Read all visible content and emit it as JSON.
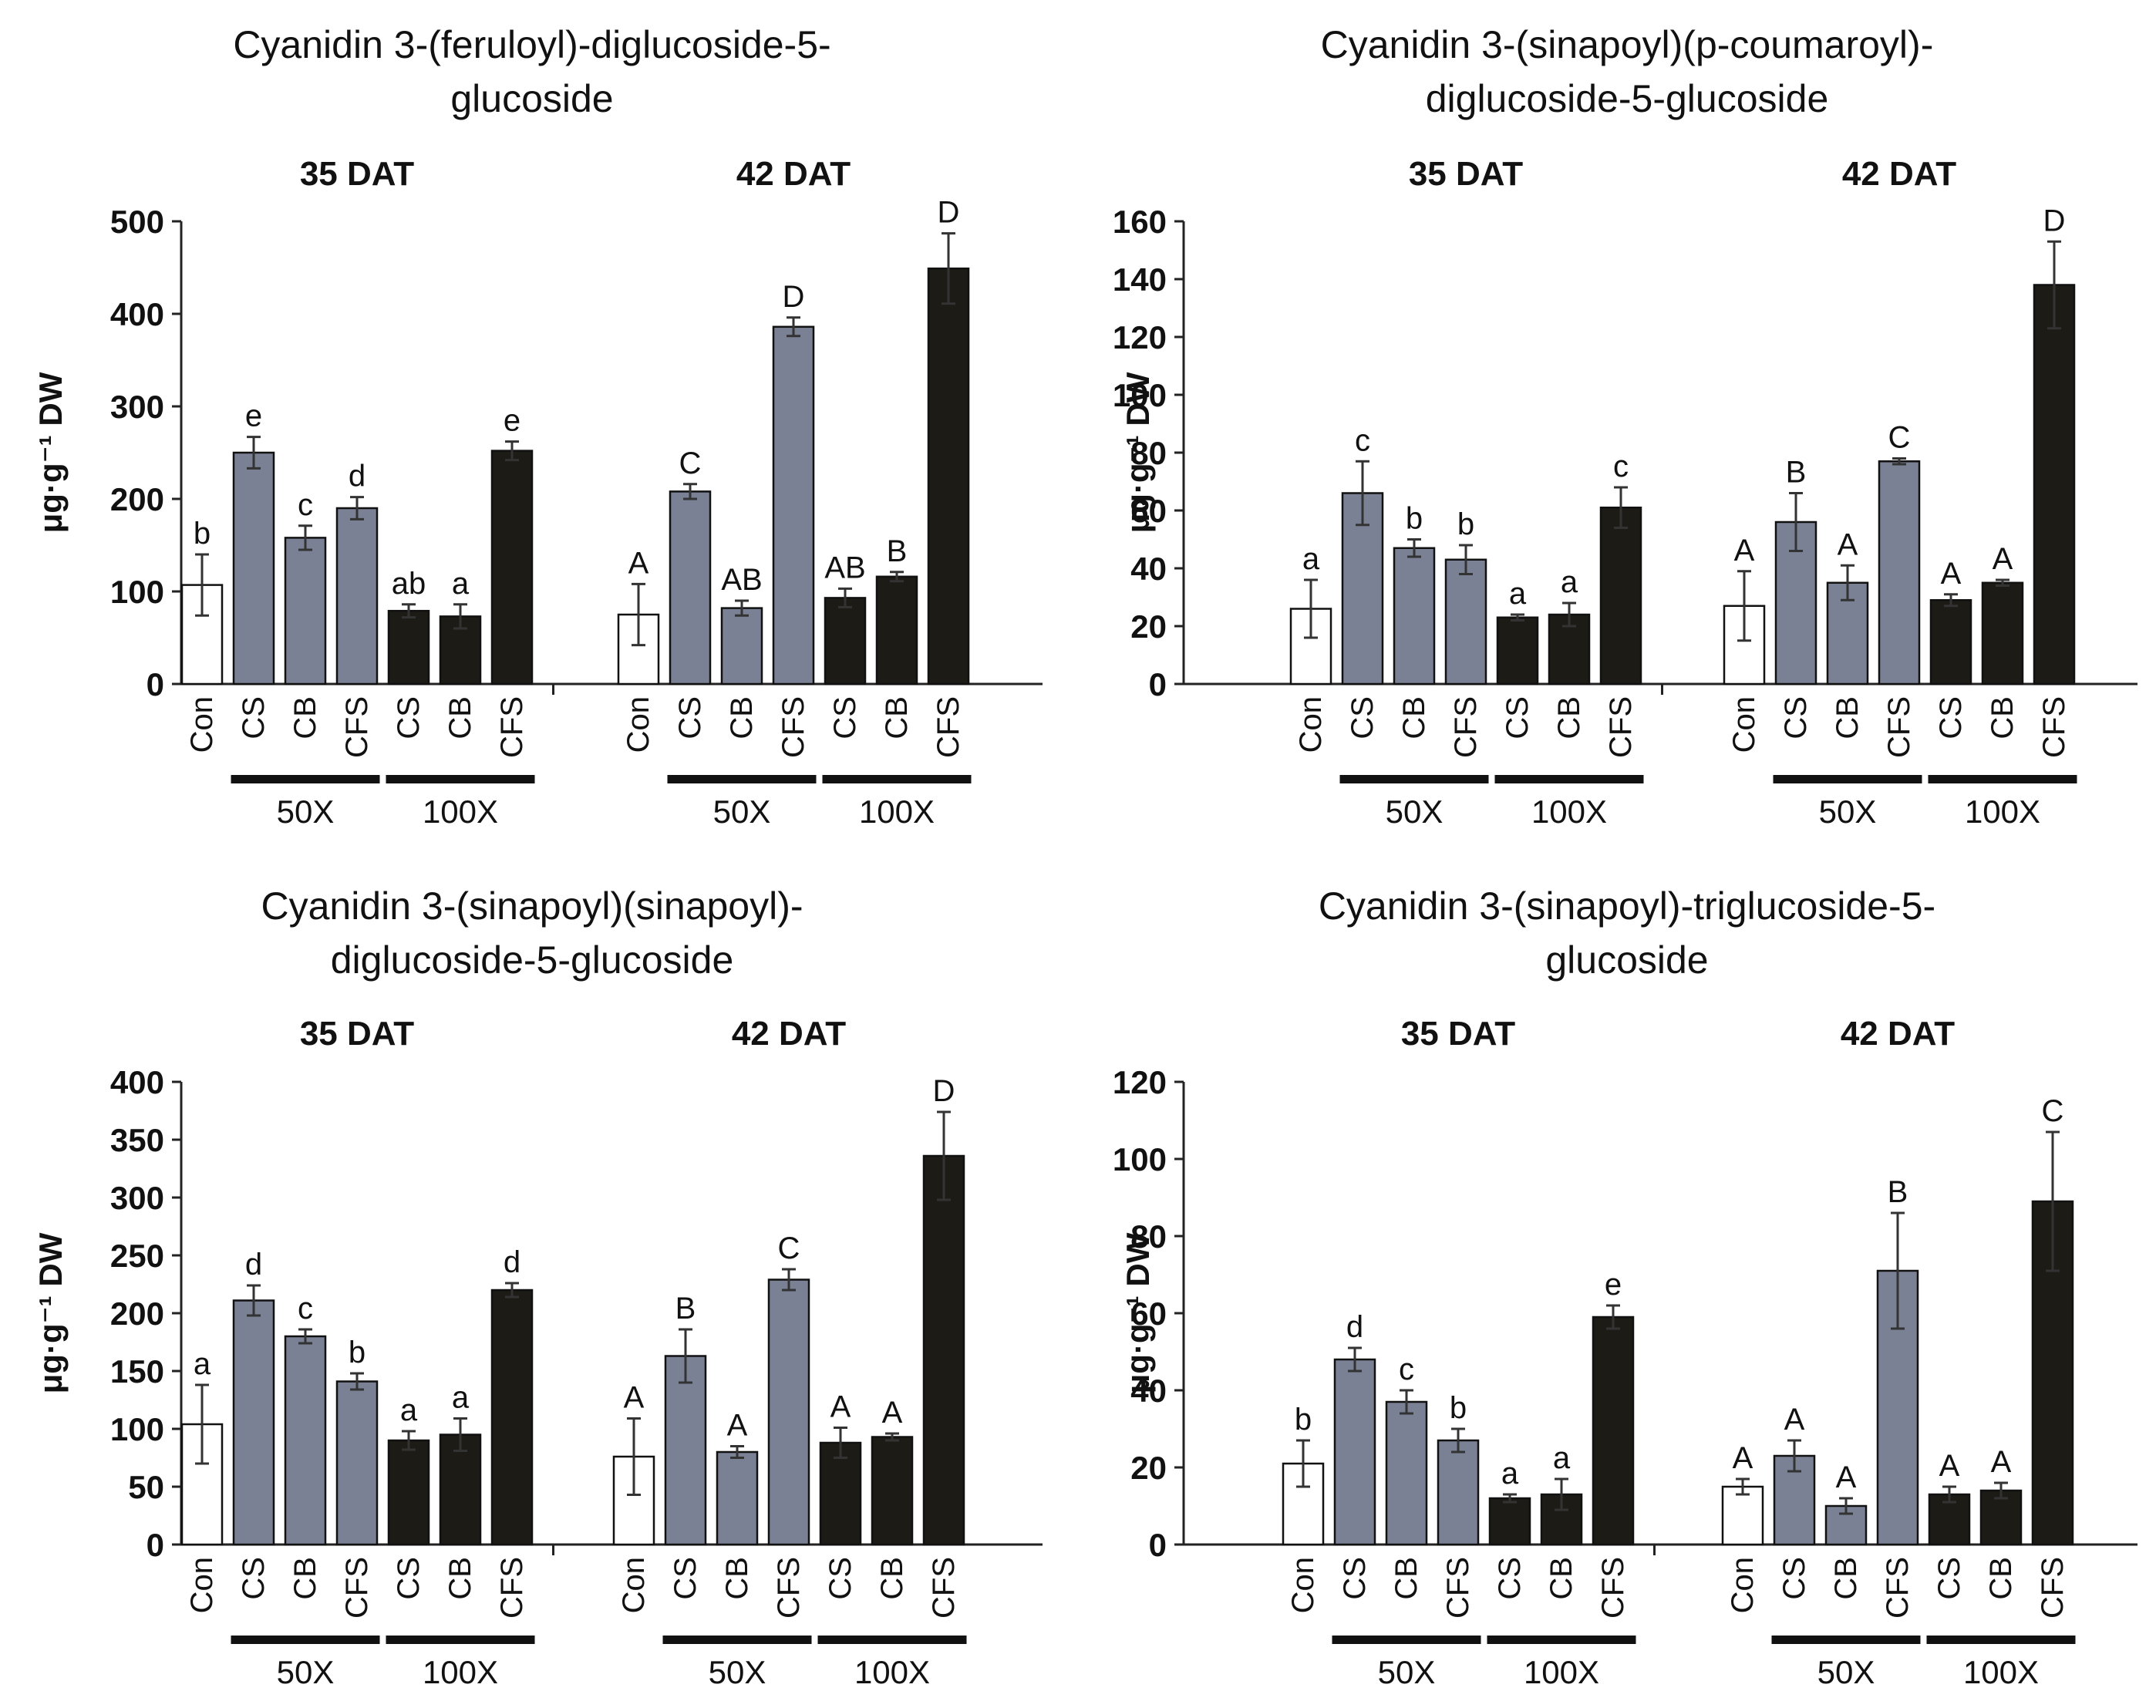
{
  "figure": {
    "colors": {
      "control": "#ffffff",
      "dose_50x": "#7a8194",
      "dose_100x": "#1c1b15",
      "axis": "#222222",
      "error": "#333333"
    }
  },
  "chart_data": [
    {
      "type": "bar",
      "title": [
        "Cyanidin 3-(feruloyl)-diglucoside-5-",
        "glucoside"
      ],
      "ylabel": "μg·g⁻¹ DW",
      "ylim": [
        0,
        500
      ],
      "yticks": [
        "0",
        "100",
        "200",
        "300",
        "400",
        "500"
      ],
      "categories": [
        "Con",
        "CS",
        "CB",
        "CFS",
        "CS",
        "CB",
        "CFS"
      ],
      "dose_labels": [
        "50X",
        "100X"
      ],
      "groups": [
        {
          "label": "35 DAT",
          "values": [
            107,
            250,
            158,
            190,
            79,
            73,
            252
          ],
          "errors": [
            33,
            17,
            13,
            12,
            7,
            13,
            10
          ],
          "letters": [
            "b",
            "e",
            "c",
            "d",
            "ab",
            "a",
            "e"
          ]
        },
        {
          "label": "42 DAT",
          "values": [
            75,
            208,
            82,
            386,
            93,
            116,
            449
          ],
          "errors": [
            33,
            8,
            8,
            10,
            10,
            5,
            38
          ],
          "letters": [
            "A",
            "C",
            "AB",
            "D",
            "AB",
            "B",
            "D"
          ]
        }
      ]
    },
    {
      "type": "bar",
      "title": [
        "Cyanidin 3-(sinapoyl)(p-coumaroyl)-",
        "diglucoside-5-glucoside"
      ],
      "ylabel": "μg·g⁻¹ DW",
      "ylim": [
        0,
        160
      ],
      "yticks": [
        "0",
        "20",
        "40",
        "60",
        "80",
        "100",
        "120",
        "140",
        "160"
      ],
      "categories": [
        "Con",
        "CS",
        "CB",
        "CFS",
        "CS",
        "CB",
        "CFS"
      ],
      "dose_labels": [
        "50X",
        "100X"
      ],
      "groups": [
        {
          "label": "35 DAT",
          "values": [
            26,
            66,
            47,
            43,
            23,
            24,
            61
          ],
          "errors": [
            10,
            11,
            3,
            5,
            1,
            4,
            7
          ],
          "letters": [
            "a",
            "c",
            "b",
            "b",
            "a",
            "a",
            "c"
          ]
        },
        {
          "label": "42 DAT",
          "values": [
            27,
            56,
            35,
            77,
            29,
            35,
            138
          ],
          "errors": [
            12,
            10,
            6,
            1,
            2,
            1,
            15
          ],
          "letters": [
            "A",
            "B",
            "A",
            "C",
            "A",
            "A",
            "D"
          ]
        }
      ]
    },
    {
      "type": "bar",
      "title": [
        "Cyanidin 3-(sinapoyl)(sinapoyl)-",
        "diglucoside-5-glucoside"
      ],
      "ylabel": "μg·g⁻¹ DW",
      "ylim": [
        0,
        400
      ],
      "yticks": [
        "0",
        "50",
        "100",
        "150",
        "200",
        "250",
        "300",
        "350",
        "400"
      ],
      "categories": [
        "Con",
        "CS",
        "CB",
        "CFS",
        "CS",
        "CB",
        "CFS"
      ],
      "dose_labels": [
        "50X",
        "100X"
      ],
      "groups": [
        {
          "label": "35 DAT",
          "values": [
            104,
            211,
            180,
            141,
            90,
            95,
            220
          ],
          "errors": [
            34,
            13,
            6,
            7,
            8,
            14,
            6
          ],
          "letters": [
            "a",
            "d",
            "c",
            "b",
            "a",
            "a",
            "d"
          ]
        },
        {
          "label": "42 DAT",
          "values": [
            76,
            163,
            80,
            229,
            88,
            93,
            336
          ],
          "errors": [
            33,
            23,
            5,
            9,
            13,
            3,
            38
          ],
          "letters": [
            "A",
            "B",
            "A",
            "C",
            "A",
            "A",
            "D"
          ]
        }
      ]
    },
    {
      "type": "bar",
      "title": [
        "Cyanidin 3-(sinapoyl)-triglucoside-5-",
        "glucoside"
      ],
      "ylabel": "μg·g⁻¹ DW",
      "ylim": [
        0,
        120
      ],
      "yticks": [
        "0",
        "20",
        "40",
        "60",
        "80",
        "100",
        "120"
      ],
      "categories": [
        "Con",
        "CS",
        "CB",
        "CFS",
        "CS",
        "CB",
        "CFS"
      ],
      "dose_labels": [
        "50X",
        "100X"
      ],
      "groups": [
        {
          "label": "35 DAT",
          "values": [
            21,
            48,
            37,
            27,
            12,
            13,
            59
          ],
          "errors": [
            6,
            3,
            3,
            3,
            1,
            4,
            3
          ],
          "letters": [
            "b",
            "d",
            "c",
            "b",
            "a",
            "a",
            "e"
          ]
        },
        {
          "label": "42 DAT",
          "values": [
            15,
            23,
            10,
            71,
            13,
            14,
            89
          ],
          "errors": [
            2,
            4,
            2,
            15,
            2,
            2,
            18
          ],
          "letters": [
            "A",
            "A",
            "A",
            "B",
            "A",
            "A",
            "C"
          ]
        }
      ]
    }
  ]
}
